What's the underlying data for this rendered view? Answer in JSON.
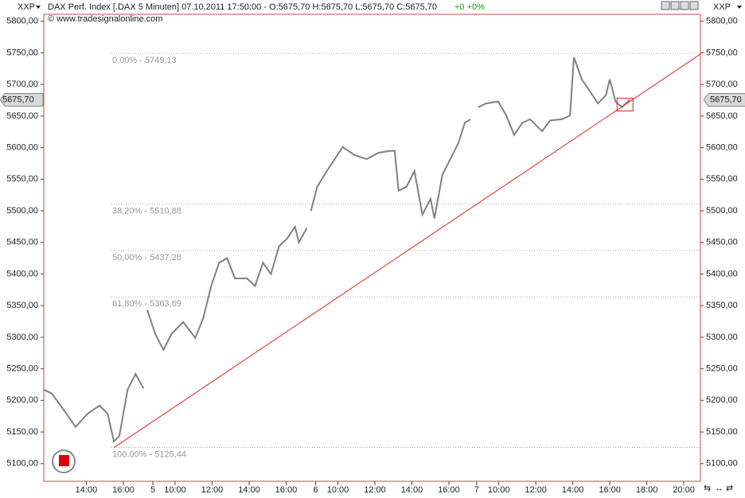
{
  "chart_data": {
    "type": "line",
    "symbol": "XXP",
    "title": "DAX Perf. Index [.DAX  5 Minuten] 07.10.2011 17:50:00 - O:5675,70 H:5675,70 L:5675,70 C:5675,70",
    "change": "+0 +0%",
    "source": "© www.tradesignalonline.com",
    "color": "#808080",
    "x": [
      0,
      0.43,
      1.08,
      1.72,
      2.37,
      3.02,
      3.45,
      3.79,
      4.09,
      4.53,
      4.96,
      5.39,
      null,
      5.6,
      6.03,
      6.47,
      6.9,
      7.54,
      8.19,
      8.62,
      9.05,
      9.48,
      9.91,
      10.34,
      10.99,
      11.42,
      11.85,
      12.28,
      12.72,
      13.15,
      13.58,
      13.79,
      14.22,
      null,
      14.44,
      14.78,
      15.3,
      15.73,
      16.16,
      16.81,
      17.46,
      18.1,
      18.75,
      18.97,
      19.18,
      19.61,
      20.04,
      20.47,
      20.91,
      21.12,
      21.55,
      21.98,
      22.41,
      22.76,
      23.06,
      null,
      23.49,
      23.92,
      24.57,
      25,
      25.43,
      25.86,
      26.29,
      26.94,
      27.37,
      28.02,
      28.45,
      28.66,
      29.09,
      29.53,
      29.96,
      30.39,
      30.6,
      30.91,
      31.25,
      31.68
    ],
    "values": [
      5217,
      5211,
      5185,
      5158,
      5179,
      5192,
      5179,
      5135,
      5144,
      5217,
      5242,
      5219,
      null,
      5343,
      5305,
      5280,
      5305,
      5324,
      5299,
      5330,
      5381,
      5418,
      5425,
      5393,
      5393,
      5381,
      5418,
      5400,
      5444,
      5456,
      5475,
      5450,
      5473,
      null,
      5500,
      5538,
      5563,
      5582,
      5601,
      5588,
      5582,
      5592,
      5595,
      5595,
      5532,
      5538,
      5563,
      5494,
      5519,
      5488,
      5557,
      5582,
      5607,
      5639,
      5645,
      null,
      5664,
      5670,
      5673,
      5651,
      5620,
      5639,
      5645,
      5626,
      5643,
      5645,
      5651,
      5743,
      5708,
      5689,
      5670,
      5683,
      5708,
      5673,
      5664,
      5675.7
    ],
    "xlim": [
      0,
      35.5
    ],
    "ylim": [
      5072,
      5811
    ],
    "xticks": [
      {
        "value": 2.3,
        "label": "14:00"
      },
      {
        "value": 4.3,
        "label": "16:00"
      },
      {
        "value": 5.9,
        "label": "5"
      },
      {
        "value": 7.1,
        "label": "10:00"
      },
      {
        "value": 9.1,
        "label": "12:00"
      },
      {
        "value": 11.1,
        "label": "14:00"
      },
      {
        "value": 13.1,
        "label": "16:00"
      },
      {
        "value": 14.7,
        "label": "6"
      },
      {
        "value": 15.9,
        "label": "10:00"
      },
      {
        "value": 17.9,
        "label": "12:00"
      },
      {
        "value": 19.9,
        "label": "14:00"
      },
      {
        "value": 21.9,
        "label": "16:00"
      },
      {
        "value": 23.4,
        "label": "7"
      },
      {
        "value": 24.6,
        "label": "10:00"
      },
      {
        "value": 26.6,
        "label": "12:00"
      },
      {
        "value": 28.6,
        "label": "14:00"
      },
      {
        "value": 30.6,
        "label": "16:00"
      },
      {
        "value": 32.6,
        "label": "18:00"
      },
      {
        "value": 34.6,
        "label": "20:00"
      }
    ],
    "yticks": [
      {
        "value": 5100,
        "label": "5100,00"
      },
      {
        "value": 5150,
        "label": "5150,00"
      },
      {
        "value": 5200,
        "label": "5200,00"
      },
      {
        "value": 5250,
        "label": "5250,00"
      },
      {
        "value": 5300,
        "label": "5300,00"
      },
      {
        "value": 5350,
        "label": "5350,00"
      },
      {
        "value": 5400,
        "label": "5400,00"
      },
      {
        "value": 5450,
        "label": "5450,00"
      },
      {
        "value": 5500,
        "label": "5500,00"
      },
      {
        "value": 5550,
        "label": "5550,00"
      },
      {
        "value": 5600,
        "label": "5600,00"
      },
      {
        "value": 5650,
        "label": "5650,00"
      },
      {
        "value": 5700,
        "label": "5700,00"
      },
      {
        "value": 5750,
        "label": "5750,00"
      },
      {
        "value": 5800,
        "label": "5800,00"
      }
    ],
    "fib_levels": [
      {
        "value": 5749.13,
        "label": "0,00% - 5749,13"
      },
      {
        "value": 5510.88,
        "label": "38,20% - 5510,88"
      },
      {
        "value": 5437.28,
        "label": "50,00% - 5437,28"
      },
      {
        "value": 5363.69,
        "label": "61,80% - 5363,69"
      },
      {
        "value": 5125.44,
        "label": "100,00% - 5125,44"
      }
    ],
    "trendline": {
      "color": "#e02020",
      "x": [
        3.8,
        35.5
      ],
      "y": [
        5125.44,
        5748
      ]
    },
    "last_price": {
      "value": 5675.7,
      "label": "5675,70"
    }
  }
}
